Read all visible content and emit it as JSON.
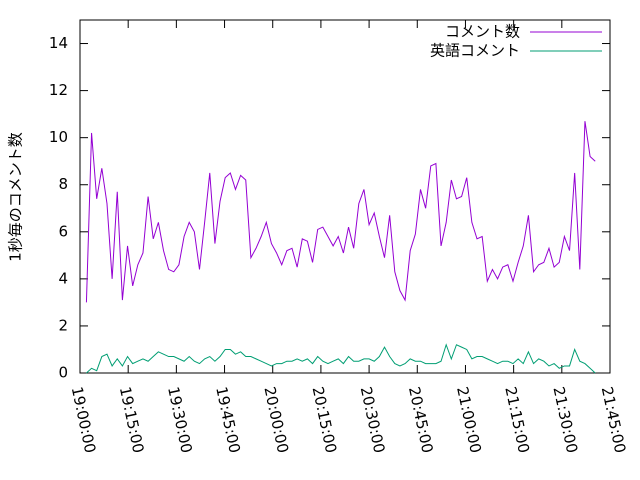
{
  "chart_data": {
    "type": "line",
    "y_label": "1秒毎のコメント数",
    "x": [
      "19:02:00",
      "19:03:36",
      "19:05:12",
      "19:06:48",
      "19:08:24",
      "19:10:00",
      "19:11:36",
      "19:13:12",
      "19:14:48",
      "19:16:24",
      "19:18:00",
      "19:19:36",
      "19:21:12",
      "19:22:48",
      "19:24:24",
      "19:26:00",
      "19:27:36",
      "19:29:12",
      "19:30:48",
      "19:32:24",
      "19:34:00",
      "19:35:36",
      "19:37:12",
      "19:38:48",
      "19:40:24",
      "19:42:00",
      "19:43:36",
      "19:45:12",
      "19:46:48",
      "19:48:24",
      "19:50:00",
      "19:51:36",
      "19:53:12",
      "19:54:48",
      "19:56:24",
      "19:58:00",
      "19:59:36",
      "20:01:12",
      "20:02:48",
      "20:04:24",
      "20:06:00",
      "20:07:36",
      "20:09:12",
      "20:10:48",
      "20:12:24",
      "20:14:00",
      "20:15:36",
      "20:17:12",
      "20:18:48",
      "20:20:24",
      "20:22:00",
      "20:23:36",
      "20:25:12",
      "20:26:48",
      "20:28:24",
      "20:30:00",
      "20:31:36",
      "20:33:12",
      "20:34:48",
      "20:36:24",
      "20:38:00",
      "20:39:36",
      "20:41:12",
      "20:42:48",
      "20:44:24",
      "20:46:00",
      "20:47:36",
      "20:49:12",
      "20:50:48",
      "20:52:24",
      "20:54:00",
      "20:55:36",
      "20:57:12",
      "20:58:48",
      "21:00:24",
      "21:02:00",
      "21:03:36",
      "21:05:12",
      "21:06:48",
      "21:08:24",
      "21:10:00",
      "21:11:36",
      "21:13:12",
      "21:14:48",
      "21:16:24",
      "21:18:00",
      "21:19:36",
      "21:21:12",
      "21:22:48",
      "21:24:24",
      "21:26:00",
      "21:27:36",
      "21:29:12",
      "21:30:48",
      "21:32:24",
      "21:34:00",
      "21:35:36",
      "21:37:12",
      "21:38:48",
      "21:40:24"
    ],
    "series": [
      {
        "name": "コメント数",
        "color": "#9400d3",
        "values": [
          3.0,
          10.2,
          7.4,
          8.7,
          7.2,
          4.0,
          7.7,
          3.1,
          5.4,
          3.7,
          4.6,
          5.1,
          7.5,
          5.7,
          6.4,
          5.2,
          4.4,
          4.3,
          4.6,
          5.8,
          6.4,
          6.0,
          4.4,
          6.4,
          8.5,
          5.5,
          7.3,
          8.3,
          8.5,
          7.8,
          8.4,
          8.2,
          4.9,
          5.3,
          5.8,
          6.4,
          5.5,
          5.1,
          4.6,
          5.2,
          5.3,
          4.5,
          5.7,
          5.6,
          4.7,
          6.1,
          6.2,
          5.8,
          5.4,
          5.8,
          5.1,
          6.2,
          5.3,
          7.2,
          7.8,
          6.3,
          6.8,
          5.8,
          4.9,
          6.7,
          4.3,
          3.5,
          3.1,
          5.2,
          5.9,
          7.8,
          7.0,
          8.8,
          8.9,
          5.4,
          6.4,
          8.2,
          7.4,
          7.5,
          8.3,
          6.4,
          5.7,
          5.8,
          3.9,
          4.4,
          4.0,
          4.5,
          4.6,
          3.9,
          4.7,
          5.4,
          6.7,
          4.3,
          4.6,
          4.7,
          5.3,
          4.5,
          4.7,
          5.8,
          5.2,
          8.5,
          4.4,
          10.7,
          9.2,
          9.0
        ]
      },
      {
        "name": "英語コメント",
        "color": "#009e73",
        "values": [
          0.0,
          0.2,
          0.1,
          0.7,
          0.8,
          0.3,
          0.6,
          0.3,
          0.7,
          0.4,
          0.5,
          0.6,
          0.5,
          0.7,
          0.9,
          0.8,
          0.7,
          0.7,
          0.6,
          0.5,
          0.7,
          0.5,
          0.4,
          0.6,
          0.7,
          0.5,
          0.7,
          1.0,
          1.0,
          0.8,
          0.9,
          0.7,
          0.7,
          0.6,
          0.5,
          0.4,
          0.3,
          0.4,
          0.4,
          0.5,
          0.5,
          0.6,
          0.5,
          0.6,
          0.4,
          0.7,
          0.5,
          0.4,
          0.5,
          0.6,
          0.4,
          0.7,
          0.5,
          0.5,
          0.6,
          0.6,
          0.5,
          0.7,
          1.1,
          0.7,
          0.4,
          0.3,
          0.4,
          0.6,
          0.5,
          0.5,
          0.4,
          0.4,
          0.4,
          0.5,
          1.2,
          0.6,
          1.2,
          1.1,
          1.0,
          0.6,
          0.7,
          0.7,
          0.6,
          0.5,
          0.4,
          0.5,
          0.5,
          0.4,
          0.6,
          0.4,
          0.9,
          0.4,
          0.6,
          0.5,
          0.3,
          0.4,
          0.2,
          0.3,
          0.3,
          1.0,
          0.5,
          0.4,
          0.2,
          0.0
        ]
      }
    ],
    "xlim": [
      "19:00:00",
      "21:45:00"
    ],
    "xticks": [
      "19:00:00",
      "19:15:00",
      "19:30:00",
      "19:45:00",
      "20:00:00",
      "20:15:00",
      "20:30:00",
      "20:45:00",
      "21:00:00",
      "21:15:00",
      "21:30:00",
      "21:45:00"
    ],
    "ylim": [
      0,
      15
    ],
    "yticks": [
      0,
      2,
      4,
      6,
      8,
      10,
      12,
      14
    ],
    "legend": "top-right"
  }
}
